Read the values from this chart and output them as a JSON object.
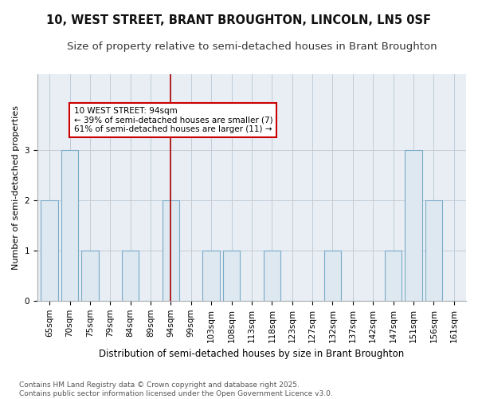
{
  "title": "10, WEST STREET, BRANT BROUGHTON, LINCOLN, LN5 0SF",
  "subtitle": "Size of property relative to semi-detached houses in Brant Broughton",
  "xlabel": "Distribution of semi-detached houses by size in Brant Broughton",
  "ylabel": "Number of semi-detached properties",
  "categories": [
    "65sqm",
    "70sqm",
    "75sqm",
    "79sqm",
    "84sqm",
    "89sqm",
    "94sqm",
    "99sqm",
    "103sqm",
    "108sqm",
    "113sqm",
    "118sqm",
    "123sqm",
    "127sqm",
    "132sqm",
    "137sqm",
    "142sqm",
    "147sqm",
    "151sqm",
    "156sqm",
    "161sqm"
  ],
  "values": [
    2,
    3,
    1,
    0,
    1,
    0,
    2,
    0,
    1,
    1,
    0,
    1,
    0,
    0,
    1,
    0,
    0,
    1,
    3,
    2,
    0
  ],
  "bar_color": "#dde8f0",
  "bar_edge_color": "#7aaac8",
  "highlight_index": 6,
  "highlight_line_color": "#aa0000",
  "annotation_text": "10 WEST STREET: 94sqm\n← 39% of semi-detached houses are smaller (7)\n61% of semi-detached houses are larger (11) →",
  "annotation_box_color": "#ffffff",
  "annotation_box_edge": "#cc0000",
  "ylim": [
    0,
    4.5
  ],
  "yticks": [
    0,
    1,
    2,
    3
  ],
  "plot_background": "#e8eef4",
  "fig_background": "#ffffff",
  "grid_color": "#c0ccd8",
  "footer_text": "Contains HM Land Registry data © Crown copyright and database right 2025.\nContains public sector information licensed under the Open Government Licence v3.0.",
  "title_fontsize": 10.5,
  "subtitle_fontsize": 9.5,
  "xlabel_fontsize": 8.5,
  "ylabel_fontsize": 8,
  "tick_fontsize": 7.5,
  "annotation_fontsize": 7.5,
  "footer_fontsize": 6.5
}
